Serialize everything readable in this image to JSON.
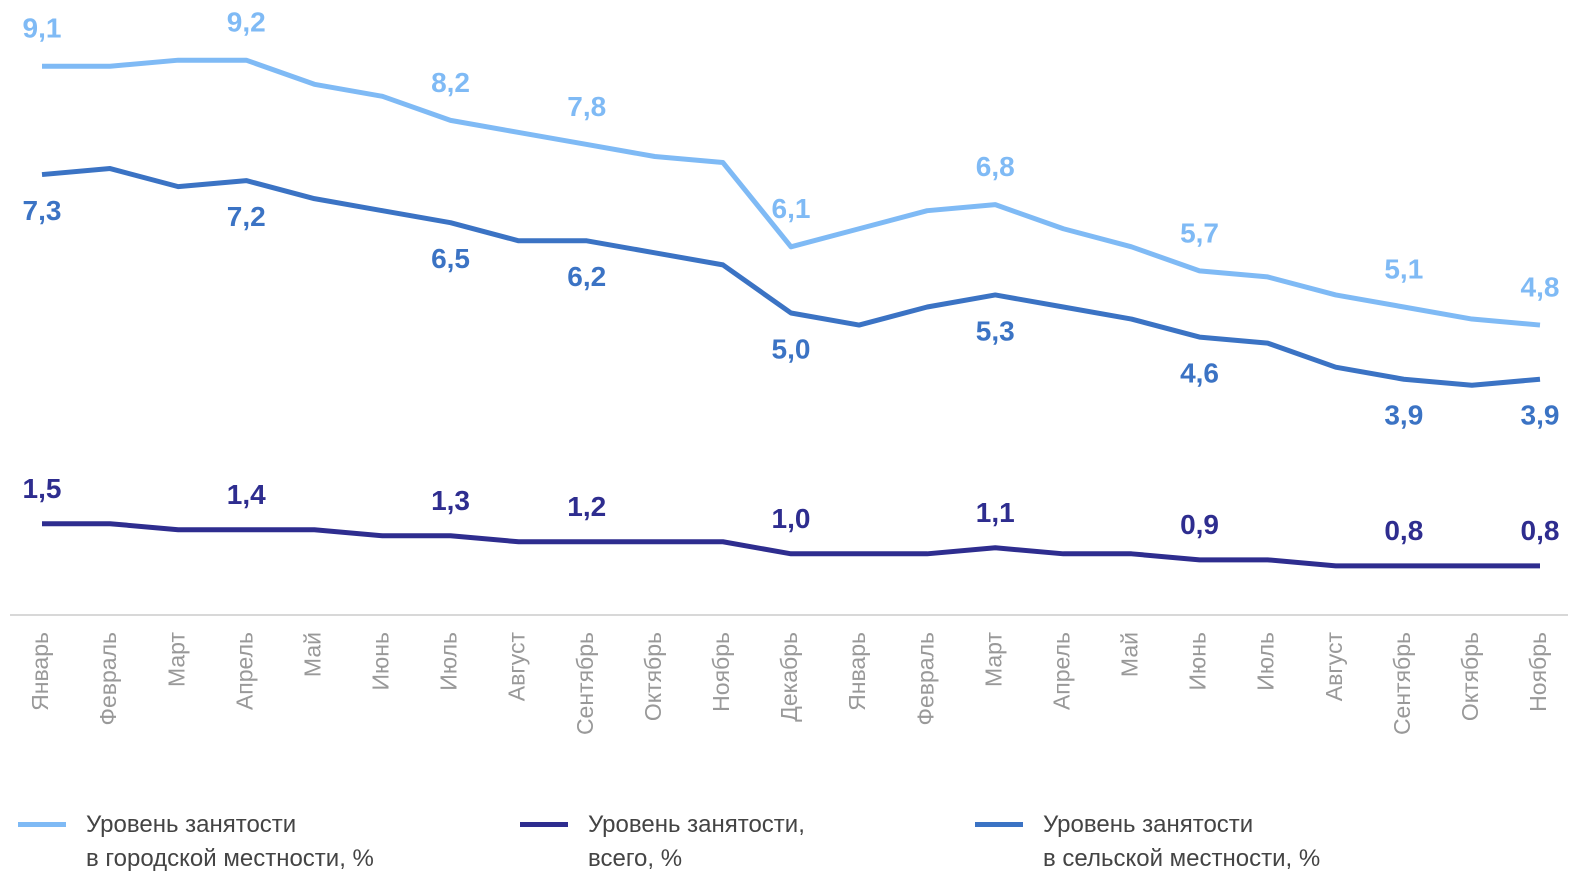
{
  "chart_data": {
    "type": "line",
    "categories": [
      "Январь",
      "Февраль",
      "Март",
      "Апрель",
      "Май",
      "Июнь",
      "Июль",
      "Август",
      "Сентябрь",
      "Октябрь",
      "Ноябрь",
      "Декабрь",
      "Январь",
      "Февраль",
      "Март",
      "Апрель",
      "Май",
      "Июнь",
      "Июль",
      "Август",
      "Сентябрь",
      "Октябрь",
      "Ноябрь"
    ],
    "ylim": [
      0,
      10.2
    ],
    "series": [
      {
        "name": "Уровень занятости\nв городской местности, %",
        "color": "#7fbaf5",
        "values": [
          9.1,
          9.1,
          9.2,
          9.2,
          8.8,
          8.6,
          8.2,
          8.0,
          7.8,
          7.6,
          7.5,
          6.1,
          6.4,
          6.7,
          6.8,
          6.4,
          6.1,
          5.7,
          5.6,
          5.3,
          5.1,
          4.9,
          4.8
        ],
        "value_labels": [
          "9,1",
          null,
          null,
          "9,2",
          null,
          null,
          "8,2",
          null,
          "7,8",
          null,
          null,
          "6,1",
          null,
          null,
          "6,8",
          null,
          null,
          "5,7",
          null,
          null,
          "5,1",
          null,
          "4,8"
        ]
      },
      {
        "name": "Уровень занятости,\nвсего, %",
        "color": "#2e2d8f",
        "values": [
          1.5,
          1.5,
          1.4,
          1.4,
          1.4,
          1.3,
          1.3,
          1.2,
          1.2,
          1.2,
          1.2,
          1.0,
          1.0,
          1.0,
          1.1,
          1.0,
          1.0,
          0.9,
          0.9,
          0.8,
          0.8,
          0.8,
          0.8
        ],
        "value_labels": [
          "1,5",
          null,
          null,
          "1,4",
          null,
          null,
          "1,3",
          null,
          "1,2",
          null,
          null,
          "1,0",
          null,
          null,
          "1,1",
          null,
          null,
          "0,9",
          null,
          null,
          "0,8",
          null,
          "0,8"
        ]
      },
      {
        "name": "Уровень занятости\nв сельской местности, %",
        "color": "#3b73c4",
        "values": [
          7.3,
          7.4,
          7.1,
          7.2,
          6.9,
          6.7,
          6.5,
          6.2,
          6.2,
          6.0,
          5.8,
          5.0,
          4.8,
          5.1,
          5.3,
          5.1,
          4.9,
          4.6,
          4.5,
          4.1,
          3.9,
          3.8,
          3.9
        ],
        "value_labels": [
          "7,3",
          null,
          null,
          "7,2",
          null,
          null,
          "6,5",
          null,
          "6,2",
          null,
          null,
          "5,0",
          null,
          null,
          "5,3",
          null,
          null,
          "4,6",
          null,
          null,
          "3,9",
          null,
          "3,9"
        ]
      }
    ]
  }
}
